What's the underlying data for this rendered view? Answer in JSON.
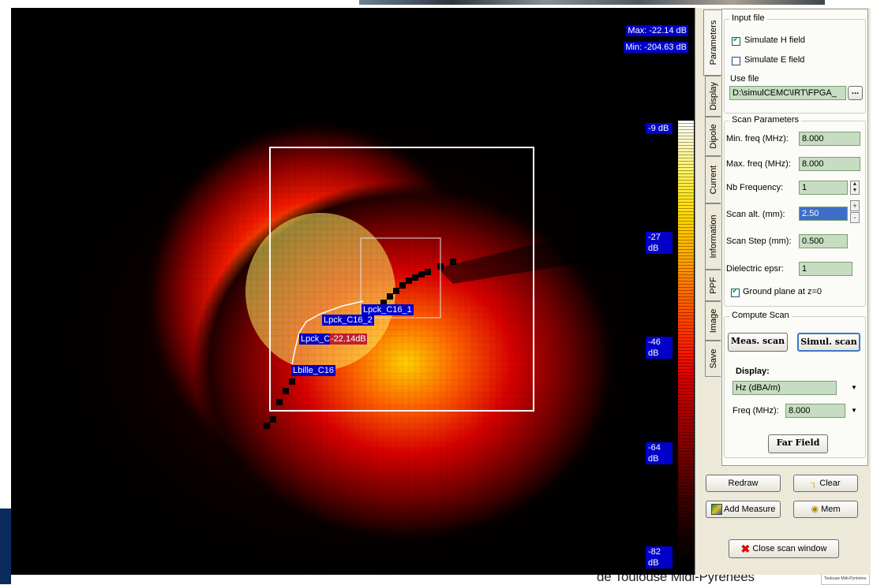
{
  "window": {
    "footer_text": "de Toulouse Midi-Pyrénées",
    "logo_text": "Toulouse Midi-Pyrénées"
  },
  "plot": {
    "max_label": "Max: -22.14 dB",
    "min_label": "Min: -204.63 dB",
    "scale_labels": [
      "-9 dB",
      "-27 dB",
      "-46 dB",
      "-64 dB",
      "-82 dB"
    ],
    "net_labels": [
      "Lpck_C16_1",
      "Lpck_C16_2",
      "Lpck_C",
      "Lbille_C16"
    ],
    "peak_label": "-22.14dB",
    "colors": {
      "hot": "#ffff40",
      "mid": "#ff2000",
      "cold": "#000000",
      "label_bg": "#0000c8"
    }
  },
  "tabs": [
    "Parameters",
    "Display",
    "Dipole",
    "Current",
    "Information",
    "PPF",
    "Image",
    "Save"
  ],
  "active_tab": "Parameters",
  "input_file": {
    "title": "Input file",
    "simulate_h": {
      "label": "Simulate H field",
      "checked": true
    },
    "simulate_e": {
      "label": "Simulate E field",
      "checked": false
    },
    "use_file_label": "Use file",
    "file_path": "D:\\simulCEMC\\IRT\\FPGA_",
    "browse_label": "..."
  },
  "scan_params": {
    "title": "Scan Parameters",
    "min_freq_label": "Min. freq (MHz):",
    "min_freq": "8.000",
    "max_freq_label": "Max. freq (MHz):",
    "max_freq": "8.000",
    "nb_freq_label": "Nb Frequency:",
    "nb_freq": "1",
    "scan_alt_label": "Scan alt. (mm):",
    "scan_alt": "2.50",
    "scan_step_label": "Scan Step (mm):",
    "scan_step": "0.500",
    "epsr_label": "Dielectric epsr:",
    "epsr": "1",
    "ground_label": "Ground plane at z=0",
    "ground_checked": true
  },
  "compute": {
    "title": "Compute Scan",
    "meas_label": "Meas. scan",
    "simul_label": "Simul. scan",
    "display_label": "Display:",
    "display_value": "Hz (dBA/m)",
    "freq_label": "Freq (MHz):",
    "freq_value": "8.000",
    "far_field_label": "Far Field"
  },
  "bottom": {
    "redraw": "Redraw",
    "clear": "Clear",
    "add_measure": "Add Measure",
    "mem": "Mem",
    "close": "Close scan window"
  }
}
